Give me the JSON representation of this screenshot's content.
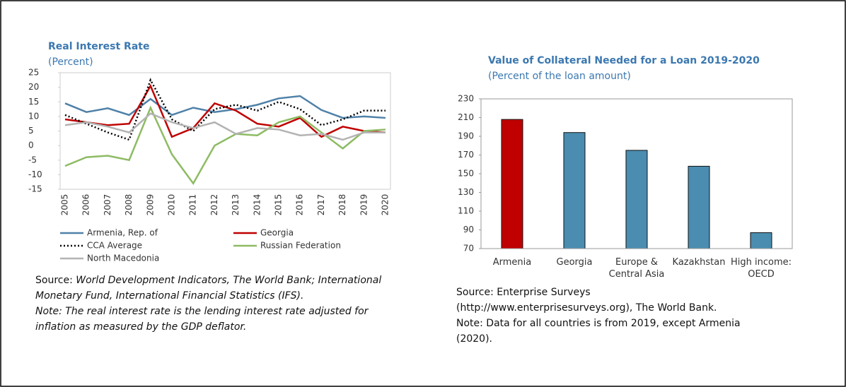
{
  "chart_data": [
    {
      "type": "line",
      "title": "Real Interest Rate",
      "subtitle": "(Percent)",
      "categories": [
        "2005",
        "2006",
        "2007",
        "2008",
        "2009",
        "2010",
        "2011",
        "2012",
        "2013",
        "2014",
        "2015",
        "2016",
        "2017",
        "2018",
        "2019",
        "2020"
      ],
      "ylim": [
        -15,
        25
      ],
      "yticks": [
        -15,
        -10,
        -5,
        0,
        5,
        10,
        15,
        20,
        25
      ],
      "series": [
        {
          "name": "Armenia, Rep. of",
          "color": "#4f81a8",
          "dash": "solid",
          "values": [
            14.5,
            11.5,
            12.8,
            10.5,
            16,
            10.5,
            13,
            11.5,
            12.5,
            14,
            16.2,
            17,
            12.2,
            9.5,
            10,
            9.5
          ]
        },
        {
          "name": "Georgia",
          "color": "#c00000",
          "dash": "solid",
          "values": [
            9,
            8,
            7,
            7.5,
            20.5,
            3,
            6,
            14.5,
            12,
            7.5,
            6.5,
            9.5,
            3,
            6.5,
            5,
            4.5
          ]
        },
        {
          "name": "CCA Average",
          "color": "#000000",
          "dash": "dotted",
          "values": [
            10.5,
            7.5,
            4.5,
            2,
            22.5,
            9,
            5,
            12.5,
            14,
            12,
            15,
            12.5,
            7,
            9,
            12,
            12
          ]
        },
        {
          "name": "Russian Federation",
          "color": "#8dbb63",
          "dash": "solid",
          "values": [
            -7,
            -4,
            -3.5,
            -5,
            13,
            -3,
            -13,
            0,
            4,
            3.5,
            8,
            10,
            4.5,
            -1,
            5,
            5.5
          ]
        },
        {
          "name": "North Macedonia",
          "color": "#b3b3b3",
          "dash": "solid",
          "values": [
            7,
            8,
            6.5,
            4.5,
            11,
            8,
            6,
            8,
            4,
            6,
            5.5,
            3.5,
            4,
            2,
            4.5,
            4.5
          ]
        }
      ],
      "source": {
        "label": "Source:",
        "text": "World Development Indicators, The World Bank; International Monetary Fund, International Financial Statistics (IFS)."
      },
      "note": "Note: The real interest rate is the lending interest rate adjusted for inflation as measured by the GDP deflator."
    },
    {
      "type": "bar",
      "title": "Value of Collateral Needed for a Loan 2019-2020",
      "subtitle": "(Percent of the loan amount)",
      "categories": [
        "Armenia",
        "Georgia",
        "Europe & Central Asia",
        "Kazakhstan",
        "High income: OECD"
      ],
      "values": [
        208,
        194,
        175,
        158,
        87
      ],
      "colors": [
        "#c00000",
        "#4a8db0",
        "#4a8db0",
        "#4a8db0",
        "#4a8db0"
      ],
      "ylim": [
        70,
        230
      ],
      "yticks": [
        70,
        90,
        110,
        130,
        150,
        170,
        190,
        210,
        230
      ],
      "source_lines": [
        "Source: Enterprise Surveys",
        "(http://www.enterprisesurveys.org), The World Bank.",
        "Note: Data for all countries is from 2019, except Armenia",
        "(2020)."
      ]
    }
  ]
}
